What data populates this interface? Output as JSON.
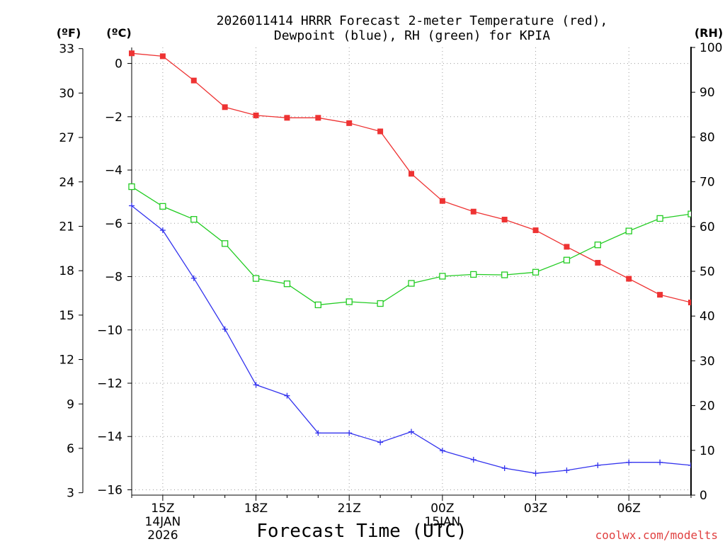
{
  "chart_data": {
    "type": "line",
    "title_line1": "2026011414 HRRR Forecast 2-meter Temperature (red),",
    "title_line2": "Dewpoint (blue), RH (green) for KPIA",
    "xlabel": "Forecast Time (UTC)",
    "credit": "coolwx.com/modelts",
    "units": {
      "fahrenheit": "(ºF)",
      "celsius": "(ºC)",
      "rh": "(RH)"
    },
    "left_axis_celsius": {
      "ylim": [
        -16.2,
        0.6
      ],
      "ticks": [
        0,
        -2,
        -4,
        -6,
        -8,
        -10,
        -12,
        -14,
        -16
      ],
      "tick_labels": [
        "0",
        "−2",
        "−4",
        "−6",
        "−8",
        "−10",
        "−12",
        "−14",
        "−16"
      ]
    },
    "left_axis_fahrenheit": {
      "ticks": [
        33,
        30,
        27,
        24,
        21,
        18,
        15,
        12,
        9,
        6,
        3
      ]
    },
    "right_axis_rh": {
      "ylim": [
        0,
        100
      ],
      "ticks": [
        100,
        90,
        80,
        70,
        60,
        50,
        40,
        30,
        20,
        10,
        0
      ]
    },
    "x_axis": {
      "range_hours": [
        14,
        32
      ],
      "ticks": [
        {
          "hour": 15,
          "label": "15Z",
          "date1": "14JAN",
          "date2": "2026"
        },
        {
          "hour": 18,
          "label": "18Z"
        },
        {
          "hour": 21,
          "label": "21Z"
        },
        {
          "hour": 24,
          "label": "00Z",
          "date1": "15JAN"
        },
        {
          "hour": 27,
          "label": "03Z"
        },
        {
          "hour": 30,
          "label": "06Z"
        }
      ]
    },
    "x_hours": [
      14,
      15,
      16,
      17,
      18,
      19,
      20,
      21,
      22,
      23,
      24,
      25,
      26,
      27,
      28,
      29,
      30,
      31,
      32
    ],
    "series": [
      {
        "name": "2-meter Temperature",
        "unit": "C",
        "color": "#ee3333",
        "marker": "filled-square",
        "values": [
          0.38,
          0.27,
          -0.64,
          -1.64,
          -1.95,
          -2.04,
          -2.04,
          -2.24,
          -2.55,
          -4.14,
          -5.16,
          -5.56,
          -5.86,
          -6.26,
          -6.88,
          -7.48,
          -8.08,
          -8.68,
          -8.97
        ]
      },
      {
        "name": "Dewpoint",
        "unit": "C",
        "color": "#3333ee",
        "marker": "plus",
        "values": [
          -5.34,
          -6.26,
          -8.06,
          -9.97,
          -12.06,
          -12.47,
          -13.87,
          -13.87,
          -14.22,
          -13.82,
          -14.53,
          -14.87,
          -15.19,
          -15.38,
          -15.27,
          -15.08,
          -14.97,
          -14.97,
          -15.08
        ]
      },
      {
        "name": "Relative Humidity",
        "unit": "%",
        "color": "#22cc22",
        "marker": "open-square",
        "values": [
          68.9,
          64.5,
          61.6,
          56.2,
          48.4,
          47.2,
          42.5,
          43.2,
          42.8,
          47.3,
          48.9,
          49.3,
          49.2,
          49.8,
          52.5,
          55.9,
          59.0,
          61.8,
          62.8
        ]
      }
    ]
  }
}
